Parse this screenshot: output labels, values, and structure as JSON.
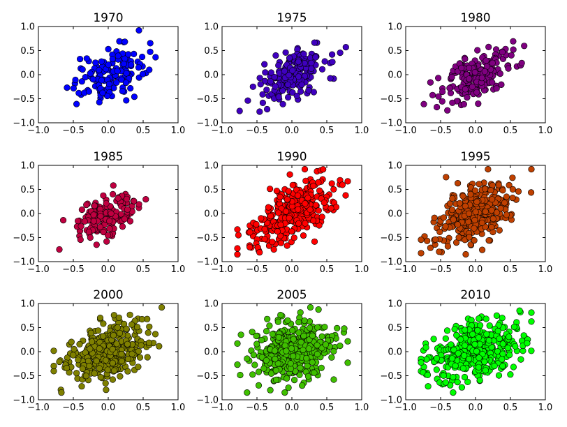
{
  "chart_data": {
    "type": "scatter",
    "layout": "3x3 grid",
    "x_ticks": [
      "−1.0",
      "−0.5",
      "0.0",
      "0.5",
      "1.0"
    ],
    "y_ticks": [
      "−1.0",
      "−0.5",
      "0.0",
      "0.5",
      "1.0"
    ],
    "xlim": [
      -1.0,
      1.0
    ],
    "ylim": [
      -1.0,
      1.0
    ],
    "grid": false,
    "subplots": [
      {
        "title": "1970",
        "color": "#0000ff",
        "n_points": 150,
        "spread_x": 0.26,
        "spread_y": 0.3,
        "correlation": 0.45,
        "center": [
          0.0,
          0.0
        ]
      },
      {
        "title": "1975",
        "color": "#3f00bf",
        "n_points": 200,
        "spread_x": 0.24,
        "spread_y": 0.27,
        "correlation": 0.5,
        "center": [
          0.0,
          0.0
        ]
      },
      {
        "title": "1980",
        "color": "#7f0080",
        "n_points": 200,
        "spread_x": 0.26,
        "spread_y": 0.28,
        "correlation": 0.55,
        "center": [
          0.0,
          0.0
        ]
      },
      {
        "title": "1985",
        "color": "#bf0040",
        "n_points": 150,
        "spread_x": 0.22,
        "spread_y": 0.24,
        "correlation": 0.45,
        "center": [
          0.0,
          0.0
        ]
      },
      {
        "title": "1990",
        "color": "#ff0000",
        "n_points": 300,
        "spread_x": 0.32,
        "spread_y": 0.36,
        "correlation": 0.6,
        "center": [
          0.0,
          0.0
        ]
      },
      {
        "title": "1995",
        "color": "#bf4000",
        "n_points": 300,
        "spread_x": 0.28,
        "spread_y": 0.32,
        "correlation": 0.45,
        "center": [
          0.0,
          0.0
        ]
      },
      {
        "title": "2000",
        "color": "#7f8000",
        "n_points": 350,
        "spread_x": 0.28,
        "spread_y": 0.3,
        "correlation": 0.4,
        "center": [
          0.0,
          0.0
        ]
      },
      {
        "title": "2005",
        "color": "#3fbf00",
        "n_points": 400,
        "spread_x": 0.3,
        "spread_y": 0.3,
        "correlation": 0.25,
        "center": [
          0.0,
          0.0
        ]
      },
      {
        "title": "2010",
        "color": "#00ff00",
        "n_points": 400,
        "spread_x": 0.32,
        "spread_y": 0.32,
        "correlation": 0.35,
        "center": [
          0.0,
          0.0
        ]
      }
    ]
  }
}
